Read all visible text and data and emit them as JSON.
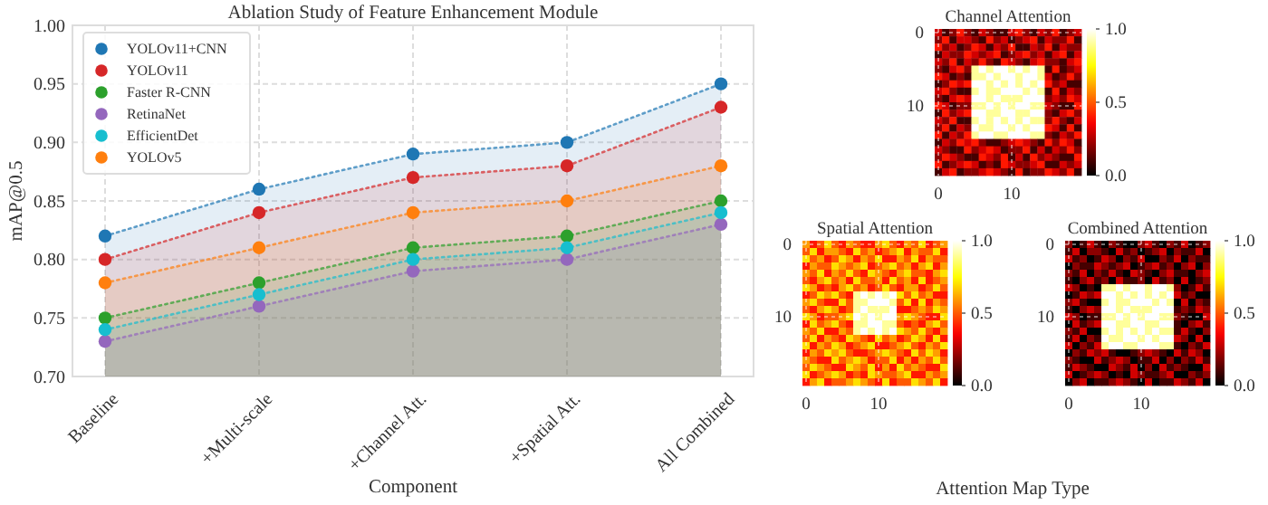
{
  "chart_data": [
    {
      "type": "area",
      "title": "Ablation Study of Feature Enhancement Module",
      "xlabel": "Component",
      "ylabel": "mAP@0.5",
      "categories": [
        "Baseline",
        "+Multi-scale",
        "+Channel Att.",
        "+Spatial Att.",
        "All Combined"
      ],
      "ylim": [
        0.7,
        1.0
      ],
      "yticks": [
        {
          "value": 0.7,
          "label": "0.70"
        },
        0.75,
        {
          "value": 0.8,
          "label": "0.80"
        },
        0.85,
        {
          "value": 0.9,
          "label": "0.90"
        },
        0.95,
        {
          "value": 1.0,
          "label": "1.00"
        }
      ],
      "grid": true,
      "legend": "top left",
      "marker": "circle",
      "line_style": "dotted",
      "series": [
        {
          "name": "YOLOv11+CNN",
          "color": "#1f77b4",
          "values": [
            0.82,
            0.86,
            0.89,
            0.9,
            0.95
          ]
        },
        {
          "name": "YOLOv11",
          "color": "#d62728",
          "values": [
            0.8,
            0.84,
            0.87,
            0.88,
            0.93
          ]
        },
        {
          "name": "Faster R-CNN",
          "color": "#2ca02c",
          "values": [
            0.75,
            0.78,
            0.81,
            0.82,
            0.85
          ]
        },
        {
          "name": "RetinaNet",
          "color": "#9467bd",
          "values": [
            0.73,
            0.76,
            0.79,
            0.8,
            0.83
          ]
        },
        {
          "name": "EfficientDet",
          "color": "#17becf",
          "values": [
            0.74,
            0.77,
            0.8,
            0.81,
            0.84
          ]
        },
        {
          "name": "YOLOv5",
          "color": "#ff7f0e",
          "values": [
            0.78,
            0.81,
            0.84,
            0.85,
            0.88
          ]
        }
      ]
    },
    {
      "type": "heatmap",
      "title": "Channel Attention",
      "categories": [
        "0",
        null,
        null,
        null,
        null,
        null,
        null,
        null,
        null,
        null,
        "10",
        null,
        null,
        null,
        null,
        null,
        null,
        null,
        null,
        null
      ],
      "y_categories": [
        "0",
        null,
        null,
        null,
        null,
        null,
        null,
        null,
        null,
        null,
        "10",
        null,
        null,
        null,
        null,
        null,
        null,
        null,
        null,
        null
      ],
      "clim": [
        0,
        1
      ],
      "cticks": [
        {
          "value": 0,
          "label": "0.0"
        },
        {
          "value": 0.5,
          "label": "0.5"
        },
        {
          "value": 1,
          "label": "1.0"
        }
      ],
      "grid": true,
      "annotations": [
        "Attention Map Type"
      ],
      "cells": [
        [
          0.3,
          0.1,
          0.2,
          0.4,
          0.2,
          0.1,
          0.3,
          0.2,
          0.1,
          0.1,
          0.3,
          0.4,
          0.2,
          0.1,
          0.3,
          0.2,
          0.4,
          0.1,
          0.2,
          0.3
        ],
        [
          0.2,
          0.4,
          0.1,
          0.3,
          0.3,
          0.2,
          0.1,
          0.4,
          0.2,
          0.3,
          0.1,
          0.2,
          0.3,
          0.4,
          0.1,
          0.3,
          0.2,
          0.2,
          0.4,
          0.1
        ],
        [
          0.4,
          0.2,
          0.3,
          0.1,
          0.2,
          0.4,
          0.3,
          0.1,
          0.3,
          0.2,
          0.4,
          0.1,
          0.1,
          0.3,
          0.2,
          0.4,
          0.1,
          0.3,
          0.2,
          0.2
        ],
        [
          0.1,
          0.3,
          0.2,
          0.2,
          0.4,
          0.3,
          0.2,
          0.3,
          0.4,
          0.1,
          0.2,
          0.3,
          0.4,
          0.2,
          0.3,
          0.1,
          0.3,
          0.4,
          0.1,
          0.3
        ],
        [
          0.3,
          0.2,
          0.4,
          0.1,
          0.3,
          0.2,
          0.4,
          0.2,
          0.1,
          0.4,
          0.3,
          0.2,
          0.1,
          0.3,
          0.4,
          0.2,
          0.2,
          0.1,
          0.3,
          0.4
        ],
        [
          0.2,
          0.1,
          0.3,
          0.4,
          0.2,
          0.9,
          1.0,
          0.9,
          1.0,
          1.0,
          0.9,
          1.0,
          0.9,
          1.0,
          0.9,
          0.1,
          0.4,
          0.1,
          0.2,
          0.3
        ],
        [
          0.4,
          0.3,
          0.1,
          0.2,
          0.1,
          0.9,
          0.9,
          1.0,
          0.9,
          1.0,
          1.0,
          0.9,
          1.0,
          1.0,
          0.9,
          0.3,
          0.1,
          0.2,
          0.4,
          0.2
        ],
        [
          0.1,
          0.2,
          0.4,
          0.3,
          0.4,
          1.0,
          1.0,
          0.9,
          1.0,
          0.9,
          1.0,
          0.9,
          1.0,
          0.9,
          1.0,
          0.4,
          0.2,
          0.3,
          0.1,
          0.1
        ],
        [
          0.3,
          0.4,
          0.2,
          0.1,
          0.1,
          0.9,
          1.0,
          0.9,
          0.9,
          1.0,
          1.0,
          1.0,
          0.9,
          1.0,
          0.9,
          0.1,
          0.4,
          0.1,
          0.3,
          0.2
        ],
        [
          0.2,
          0.1,
          0.3,
          0.4,
          0.3,
          1.0,
          1.0,
          0.9,
          1.0,
          0.9,
          0.9,
          0.9,
          1.0,
          1.0,
          1.0,
          0.2,
          0.3,
          0.2,
          0.4,
          0.3
        ],
        [
          0.4,
          0.3,
          0.1,
          0.2,
          0.2,
          0.9,
          0.9,
          1.0,
          0.9,
          1.0,
          0.9,
          1.0,
          1.0,
          0.9,
          0.9,
          0.3,
          0.2,
          0.1,
          0.1,
          0.4
        ],
        [
          0.1,
          0.4,
          0.2,
          0.3,
          0.4,
          1.0,
          1.0,
          0.9,
          0.9,
          1.0,
          1.0,
          0.9,
          0.9,
          1.0,
          1.0,
          0.2,
          0.1,
          0.3,
          0.4,
          0.2
        ],
        [
          0.3,
          0.2,
          0.4,
          0.1,
          0.1,
          0.9,
          1.0,
          0.9,
          1.0,
          0.9,
          1.0,
          0.9,
          1.0,
          0.9,
          0.9,
          0.2,
          0.4,
          0.2,
          0.1,
          0.3
        ],
        [
          0.2,
          0.4,
          0.1,
          0.3,
          0.2,
          1.0,
          0.9,
          0.9,
          1.0,
          1.0,
          0.9,
          1.0,
          0.9,
          1.0,
          1.0,
          0.4,
          0.3,
          0.1,
          0.4,
          0.1
        ],
        [
          0.4,
          0.1,
          0.3,
          0.2,
          0.4,
          0.9,
          1.0,
          1.0,
          0.9,
          0.9,
          1.0,
          1.0,
          1.0,
          0.9,
          0.9,
          0.2,
          0.1,
          0.3,
          0.2,
          0.4
        ],
        [
          0.1,
          0.3,
          0.2,
          0.4,
          0.3,
          0.4,
          0.2,
          0.1,
          0.1,
          0.2,
          0.3,
          0.4,
          0.3,
          0.2,
          0.1,
          0.4,
          0.2,
          0.4,
          0.3,
          0.1
        ],
        [
          0.3,
          0.2,
          0.1,
          0.1,
          0.4,
          0.2,
          0.3,
          0.4,
          0.3,
          0.1,
          0.2,
          0.2,
          0.4,
          0.1,
          0.3,
          0.1,
          0.3,
          0.2,
          0.4,
          0.2
        ],
        [
          0.2,
          0.4,
          0.3,
          0.2,
          0.1,
          0.1,
          0.4,
          0.3,
          0.2,
          0.4,
          0.1,
          0.3,
          0.1,
          0.4,
          0.2,
          0.3,
          0.2,
          0.1,
          0.1,
          0.4
        ],
        [
          0.4,
          0.1,
          0.2,
          0.3,
          0.4,
          0.3,
          0.1,
          0.2,
          0.1,
          0.4,
          0.3,
          0.2,
          0.2,
          0.3,
          0.4,
          0.1,
          0.1,
          0.3,
          0.2,
          0.3
        ],
        [
          0.1,
          0.3,
          0.4,
          0.1,
          0.2,
          0.2,
          0.3,
          0.4,
          0.3,
          0.2,
          0.1,
          0.4,
          0.1,
          0.2,
          0.2,
          0.4,
          0.3,
          0.2,
          0.4,
          0.1
        ]
      ]
    },
    {
      "type": "heatmap",
      "title": "Spatial Attention",
      "categories": [
        "0",
        null,
        null,
        null,
        null,
        null,
        null,
        null,
        null,
        null,
        "10",
        null,
        null,
        null,
        null,
        null,
        null,
        null,
        null,
        null
      ],
      "y_categories": [
        "0",
        null,
        null,
        null,
        null,
        null,
        null,
        null,
        null,
        null,
        "10",
        null,
        null,
        null,
        null,
        null,
        null,
        null,
        null,
        null
      ],
      "clim": [
        0,
        1
      ],
      "cticks": [
        {
          "value": 0,
          "label": "0.0"
        },
        {
          "value": 0.5,
          "label": "0.5"
        },
        {
          "value": 1,
          "label": "1.0"
        }
      ],
      "grid": true,
      "cells": [
        [
          0.6,
          0.4,
          0.5,
          0.7,
          0.5,
          0.4,
          0.6,
          0.5,
          0.4,
          0.4,
          0.6,
          0.7,
          0.5,
          0.4,
          0.6,
          0.5,
          0.7,
          0.4,
          0.5,
          0.6
        ],
        [
          0.5,
          0.7,
          0.4,
          0.6,
          0.6,
          0.5,
          0.4,
          0.7,
          0.5,
          0.6,
          0.4,
          0.5,
          0.6,
          0.7,
          0.4,
          0.6,
          0.5,
          0.5,
          0.7,
          0.4
        ],
        [
          0.7,
          0.5,
          0.6,
          0.4,
          0.5,
          0.7,
          0.6,
          0.4,
          0.6,
          0.5,
          0.7,
          0.4,
          0.4,
          0.6,
          0.5,
          0.7,
          0.4,
          0.6,
          0.5,
          0.5
        ],
        [
          0.4,
          0.6,
          0.5,
          0.5,
          0.7,
          0.6,
          0.5,
          0.6,
          0.7,
          0.4,
          0.5,
          0.6,
          0.7,
          0.5,
          0.6,
          0.4,
          0.6,
          0.7,
          0.4,
          0.6
        ],
        [
          0.6,
          0.5,
          0.7,
          0.4,
          0.6,
          0.5,
          0.7,
          0.5,
          0.4,
          0.7,
          0.6,
          0.5,
          0.4,
          0.6,
          0.7,
          0.5,
          0.5,
          0.4,
          0.6,
          0.7
        ],
        [
          0.5,
          0.4,
          0.6,
          0.7,
          0.5,
          0.6,
          0.4,
          0.7,
          0.5,
          0.5,
          0.6,
          0.4,
          0.7,
          0.5,
          0.6,
          0.4,
          0.7,
          0.4,
          0.5,
          0.6
        ],
        [
          0.7,
          0.6,
          0.4,
          0.5,
          0.4,
          0.6,
          0.7,
          0.5,
          0.6,
          0.4,
          0.5,
          0.7,
          0.5,
          0.4,
          0.6,
          0.6,
          0.4,
          0.5,
          0.7,
          0.5
        ],
        [
          0.4,
          0.5,
          0.7,
          0.6,
          0.7,
          0.5,
          0.4,
          0.9,
          1.0,
          0.9,
          1.0,
          0.9,
          1.0,
          0.7,
          0.5,
          0.7,
          0.5,
          0.6,
          0.4,
          0.4
        ],
        [
          0.6,
          0.7,
          0.5,
          0.4,
          0.4,
          0.7,
          0.5,
          0.9,
          0.9,
          1.0,
          1.0,
          1.0,
          0.9,
          0.5,
          0.7,
          0.4,
          0.7,
          0.4,
          0.6,
          0.5
        ],
        [
          0.5,
          0.4,
          0.6,
          0.7,
          0.6,
          0.4,
          0.5,
          0.9,
          1.0,
          0.9,
          0.9,
          0.9,
          1.0,
          0.4,
          0.4,
          0.5,
          0.6,
          0.5,
          0.7,
          0.6
        ],
        [
          0.7,
          0.6,
          0.4,
          0.5,
          0.5,
          0.6,
          0.7,
          1.0,
          0.9,
          1.0,
          0.9,
          1.0,
          1.0,
          0.6,
          0.7,
          0.6,
          0.5,
          0.4,
          0.4,
          0.7
        ],
        [
          0.4,
          0.7,
          0.5,
          0.6,
          0.7,
          0.5,
          0.4,
          0.9,
          0.9,
          1.0,
          1.0,
          0.9,
          0.9,
          0.5,
          0.4,
          0.5,
          0.4,
          0.6,
          0.7,
          0.5
        ],
        [
          0.6,
          0.5,
          0.7,
          0.4,
          0.4,
          0.6,
          0.5,
          0.9,
          1.0,
          0.9,
          1.0,
          0.9,
          1.0,
          0.7,
          0.6,
          0.5,
          0.7,
          0.5,
          0.4,
          0.6
        ],
        [
          0.5,
          0.7,
          0.4,
          0.6,
          0.5,
          0.4,
          0.7,
          0.6,
          0.5,
          0.4,
          0.7,
          0.5,
          0.6,
          0.4,
          0.5,
          0.7,
          0.6,
          0.4,
          0.7,
          0.4
        ],
        [
          0.7,
          0.4,
          0.6,
          0.5,
          0.7,
          0.6,
          0.4,
          0.5,
          0.6,
          0.7,
          0.4,
          0.4,
          0.5,
          0.6,
          0.7,
          0.5,
          0.4,
          0.6,
          0.5,
          0.7
        ],
        [
          0.4,
          0.6,
          0.5,
          0.7,
          0.6,
          0.7,
          0.5,
          0.4,
          0.4,
          0.5,
          0.6,
          0.7,
          0.6,
          0.5,
          0.4,
          0.7,
          0.5,
          0.7,
          0.6,
          0.4
        ],
        [
          0.6,
          0.5,
          0.4,
          0.4,
          0.7,
          0.5,
          0.6,
          0.7,
          0.6,
          0.4,
          0.5,
          0.5,
          0.7,
          0.4,
          0.6,
          0.4,
          0.6,
          0.5,
          0.7,
          0.5
        ],
        [
          0.5,
          0.7,
          0.6,
          0.5,
          0.4,
          0.4,
          0.7,
          0.6,
          0.5,
          0.7,
          0.4,
          0.6,
          0.4,
          0.7,
          0.5,
          0.6,
          0.5,
          0.4,
          0.4,
          0.7
        ],
        [
          0.7,
          0.4,
          0.5,
          0.6,
          0.7,
          0.6,
          0.4,
          0.5,
          0.4,
          0.7,
          0.6,
          0.5,
          0.5,
          0.6,
          0.7,
          0.4,
          0.4,
          0.6,
          0.5,
          0.6
        ],
        [
          0.4,
          0.6,
          0.7,
          0.4,
          0.5,
          0.5,
          0.6,
          0.7,
          0.6,
          0.5,
          0.4,
          0.7,
          0.4,
          0.5,
          0.5,
          0.7,
          0.6,
          0.5,
          0.7,
          0.4
        ]
      ]
    },
    {
      "type": "heatmap",
      "title": "Combined Attention",
      "categories": [
        "0",
        null,
        null,
        null,
        null,
        null,
        null,
        null,
        null,
        null,
        "10",
        null,
        null,
        null,
        null,
        null,
        null,
        null,
        null,
        null
      ],
      "y_categories": [
        "0",
        null,
        null,
        null,
        null,
        null,
        null,
        null,
        null,
        null,
        "10",
        null,
        null,
        null,
        null,
        null,
        null,
        null,
        null,
        null
      ],
      "clim": [
        0,
        1
      ],
      "cticks": [
        {
          "value": 0,
          "label": "0.0"
        },
        {
          "value": 0.5,
          "label": "0.5"
        },
        {
          "value": 1,
          "label": "1.0"
        }
      ],
      "grid": true,
      "cells": [
        [
          0.2,
          0,
          0.1,
          0.3,
          0.1,
          0,
          0.2,
          0.1,
          0,
          0,
          0.2,
          0.3,
          0.1,
          0,
          0.2,
          0.1,
          0.3,
          0,
          0.1,
          0.2
        ],
        [
          0.1,
          0.3,
          0,
          0.2,
          0.2,
          0.1,
          0,
          0.3,
          0.1,
          0.2,
          0,
          0.1,
          0.2,
          0.3,
          0,
          0.2,
          0.1,
          0.1,
          0.3,
          0
        ],
        [
          0.3,
          0.1,
          0.2,
          0,
          0.1,
          0.3,
          0.2,
          0,
          0.2,
          0.1,
          0.3,
          0,
          0,
          0.2,
          0.1,
          0.3,
          0,
          0.2,
          0.1,
          0.1
        ],
        [
          0,
          0.2,
          0.1,
          0.1,
          0.3,
          0.2,
          0.1,
          0.2,
          0.3,
          0,
          0.1,
          0.2,
          0.3,
          0.1,
          0.2,
          0,
          0.2,
          0.3,
          0,
          0.2
        ],
        [
          0.2,
          0.1,
          0.3,
          0,
          0.2,
          0.1,
          0.3,
          0.1,
          0,
          0.3,
          0.2,
          0.1,
          0,
          0.2,
          0.3,
          0.1,
          0.1,
          0,
          0.2,
          0.3
        ],
        [
          0.1,
          0,
          0.2,
          0.3,
          0.1,
          0.2,
          0,
          0.3,
          0.1,
          0.1,
          0.2,
          0,
          0.3,
          0.1,
          0.2,
          0,
          0.3,
          0,
          0.1,
          0.2
        ],
        [
          0.3,
          0.2,
          0,
          0.1,
          0,
          0.9,
          0.9,
          1.0,
          0.9,
          1.0,
          1.0,
          0.9,
          1.0,
          1.0,
          0.9,
          0.2,
          0,
          0.1,
          0.3,
          0.1
        ],
        [
          0,
          0.1,
          0.3,
          0.2,
          0.3,
          1.0,
          1.0,
          0.9,
          1.0,
          0.9,
          1.0,
          0.9,
          1.0,
          0.9,
          1.0,
          0.3,
          0.1,
          0.2,
          0,
          0
        ],
        [
          0.2,
          0.3,
          0.1,
          0,
          0,
          0.9,
          1.0,
          0.9,
          0.9,
          1.0,
          1.0,
          1.0,
          0.9,
          1.0,
          0.9,
          0,
          0.3,
          0,
          0.2,
          0.1
        ],
        [
          0.1,
          0,
          0.2,
          0.3,
          0.2,
          1.0,
          1.0,
          0.9,
          1.0,
          0.9,
          0.9,
          0.9,
          1.0,
          1.0,
          1.0,
          0.1,
          0.2,
          0.1,
          0.3,
          0.2
        ],
        [
          0.3,
          0.2,
          0,
          0.1,
          0.1,
          0.9,
          0.9,
          1.0,
          0.9,
          1.0,
          0.9,
          1.0,
          1.0,
          0.9,
          0.9,
          0.2,
          0.1,
          0,
          0,
          0.3
        ],
        [
          0,
          0.3,
          0.1,
          0.2,
          0.3,
          1.0,
          1.0,
          0.9,
          0.9,
          1.0,
          1.0,
          0.9,
          0.9,
          1.0,
          1.0,
          0.1,
          0,
          0.2,
          0.3,
          0.1
        ],
        [
          0.2,
          0.1,
          0.3,
          0,
          0,
          0.9,
          1.0,
          0.9,
          1.0,
          0.9,
          1.0,
          0.9,
          1.0,
          0.9,
          0.9,
          0.1,
          0.3,
          0.1,
          0,
          0.2
        ],
        [
          0.1,
          0.3,
          0,
          0.2,
          0.1,
          1.0,
          0.9,
          0.9,
          1.0,
          1.0,
          0.9,
          1.0,
          0.9,
          1.0,
          1.0,
          0.3,
          0.2,
          0,
          0.3,
          0
        ],
        [
          0.3,
          0,
          0.2,
          0.1,
          0.3,
          0.9,
          1.0,
          1.0,
          0.9,
          0.9,
          1.0,
          1.0,
          1.0,
          0.9,
          0.9,
          0.1,
          0,
          0.2,
          0.1,
          0.3
        ],
        [
          0,
          0.2,
          0.1,
          0.3,
          0.2,
          0.3,
          0.1,
          0,
          0,
          0.1,
          0.2,
          0.3,
          0.2,
          0.1,
          0,
          0.3,
          0.1,
          0.3,
          0.2,
          0
        ],
        [
          0.2,
          0.1,
          0,
          0,
          0.3,
          0.1,
          0.2,
          0.3,
          0.2,
          0,
          0.1,
          0.1,
          0.3,
          0,
          0.2,
          0,
          0.2,
          0.1,
          0.3,
          0.1
        ],
        [
          0.1,
          0.3,
          0.2,
          0.1,
          0,
          0,
          0.3,
          0.2,
          0.1,
          0.3,
          0,
          0.2,
          0,
          0.3,
          0.1,
          0.2,
          0.1,
          0,
          0,
          0.3
        ],
        [
          0.3,
          0,
          0.1,
          0.2,
          0.3,
          0.2,
          0,
          0.1,
          0,
          0.3,
          0.2,
          0.1,
          0.1,
          0.2,
          0.3,
          0,
          0,
          0.2,
          0.1,
          0.2
        ],
        [
          0,
          0.2,
          0.3,
          0,
          0.1,
          0.1,
          0.2,
          0.3,
          0.2,
          0.1,
          0,
          0.3,
          0,
          0.1,
          0.1,
          0.3,
          0.2,
          0.1,
          0.3,
          0
        ]
      ]
    }
  ]
}
